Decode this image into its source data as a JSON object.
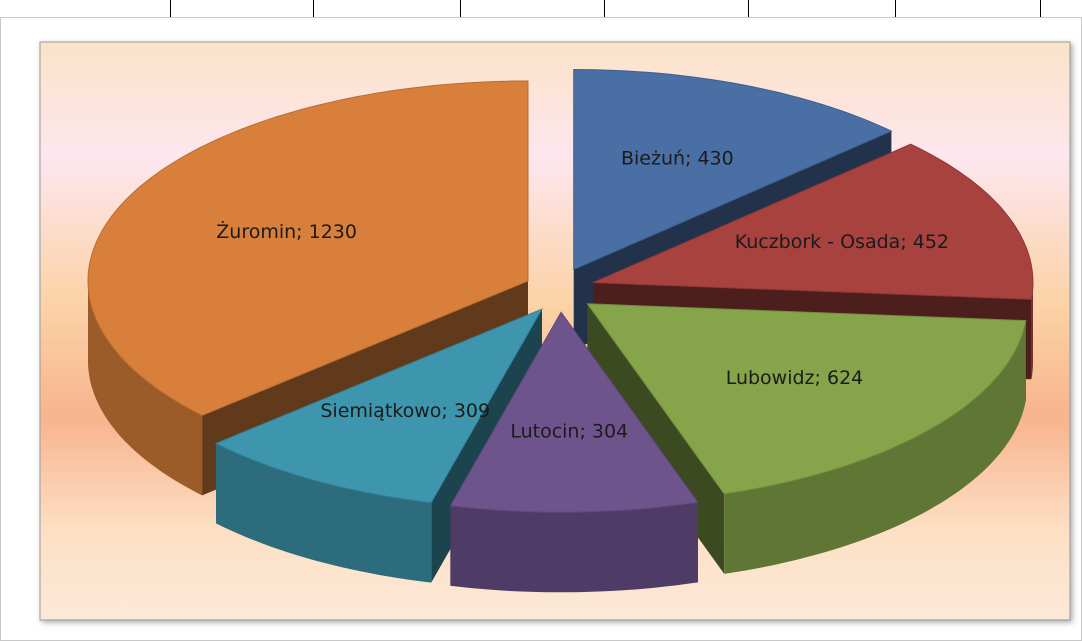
{
  "chart_data": {
    "type": "pie3d",
    "values": [
      430,
      452,
      624,
      304,
      309,
      1230
    ],
    "value_labels": [
      "Bieżuń; 430",
      "Kuczbork - Osada; 452",
      "Lubowidz; 624",
      "Lutocin; 304",
      "Siemiątkowo; 309",
      "Żuromin; 1230"
    ],
    "colors": [
      "#4a6fa5",
      "#a8423f",
      "#86a44a",
      "#6e548d",
      "#3d96ae",
      "#d8803b"
    ],
    "exploded": true
  }
}
